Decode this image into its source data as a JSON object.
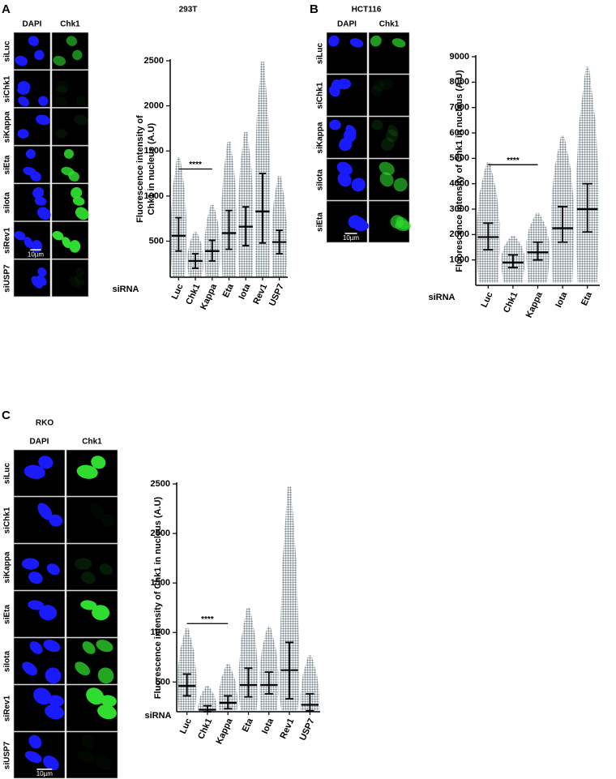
{
  "figure_panels": [
    {
      "label": "A",
      "title": "293T",
      "columns": [
        "DAPI",
        "Chk1"
      ],
      "rows": [
        "siLuc",
        "siChk1",
        "siKappa",
        "siEta",
        "siIota",
        "siRev1",
        "siUSP7"
      ],
      "scale_bar": "10µm"
    },
    {
      "label": "B",
      "title": "HCT116",
      "columns": [
        "DAPI",
        "Chk1"
      ],
      "rows": [
        "siLuc",
        "siChk1",
        "siKappa",
        "siIota",
        "siEta"
      ],
      "scale_bar": "10µm"
    },
    {
      "label": "C",
      "title": "RKO",
      "columns": [
        "DAPI",
        "Chk1"
      ],
      "rows": [
        "siLuc",
        "siChk1",
        "siKappa",
        "siEta",
        "siIota",
        "siRev1",
        "siUSP7"
      ],
      "scale_bar": "10µm"
    }
  ],
  "chart_data": [
    {
      "type": "dotplot",
      "ylabel": [
        "Fluorescence intensity of",
        "Chk1 in nucleus (A.U)"
      ],
      "xlabel": "siRNA",
      "color": "#6f7f85",
      "categories": [
        "Luc",
        "Chk1",
        "Kappa",
        "Eta",
        "Iota",
        "Rev1",
        "USP7"
      ],
      "medians": [
        560,
        280,
        390,
        590,
        660,
        830,
        490
      ],
      "q1": [
        390,
        200,
        280,
        410,
        450,
        480,
        360
      ],
      "q3": [
        760,
        360,
        510,
        840,
        880,
        1250,
        620
      ],
      "mins": [
        110,
        110,
        110,
        110,
        110,
        110,
        110
      ],
      "maxs": [
        1430,
        600,
        900,
        1600,
        1710,
        2490,
        1220
      ],
      "ylim": [
        100,
        2500
      ],
      "yticks": [
        500,
        1000,
        1500,
        2000,
        2500
      ],
      "significance": {
        "label": "****",
        "between": [
          "Luc",
          "Kappa"
        ],
        "y": 1300
      }
    },
    {
      "type": "dotplot",
      "ylabel": [
        "Fluorescence intensity of Chk1 in nucleus (A.U)"
      ],
      "xlabel": "siRNA",
      "color": "#6f7f85",
      "categories": [
        "Luc",
        "Chk1",
        "Kappa",
        "Iota",
        "Eta"
      ],
      "medians": [
        1900,
        900,
        1300,
        2250,
        3000
      ],
      "q1": [
        1400,
        700,
        1000,
        1700,
        2100
      ],
      "q3": [
        2450,
        1200,
        1700,
        3100,
        4000
      ],
      "mins": [
        100,
        100,
        100,
        100,
        100
      ],
      "maxs": [
        4850,
        1950,
        2850,
        5900,
        8600
      ],
      "ylim": [
        0,
        9000
      ],
      "yticks": [
        1000,
        2000,
        3000,
        4000,
        5000,
        6000,
        7000,
        8000,
        9000
      ],
      "significance": {
        "label": "****",
        "between": [
          "Luc",
          "Kappa"
        ],
        "y": 4750
      }
    },
    {
      "type": "dotplot",
      "ylabel": [
        "Fluorescence intensity of Chk1 in nucleus (A.U)"
      ],
      "xlabel": "siRNA",
      "color": "#6f7f85",
      "categories": [
        "Luc",
        "Chk1",
        "Kappa",
        "Eta",
        "Iota",
        "Rev1",
        "USP7"
      ],
      "medians": [
        460,
        220,
        290,
        470,
        470,
        620,
        270
      ],
      "q1": [
        360,
        200,
        230,
        350,
        380,
        330,
        210
      ],
      "q3": [
        580,
        260,
        360,
        640,
        600,
        900,
        380
      ],
      "mins": [
        210,
        210,
        210,
        210,
        210,
        210,
        210
      ],
      "maxs": [
        1040,
        460,
        680,
        1250,
        1060,
        2480,
        770
      ],
      "ylim": [
        200,
        2500
      ],
      "yticks": [
        500,
        1000,
        1500,
        2000,
        2500
      ],
      "significance": {
        "label": "****",
        "between": [
          "Luc",
          "Kappa"
        ],
        "y": 1090
      }
    }
  ]
}
